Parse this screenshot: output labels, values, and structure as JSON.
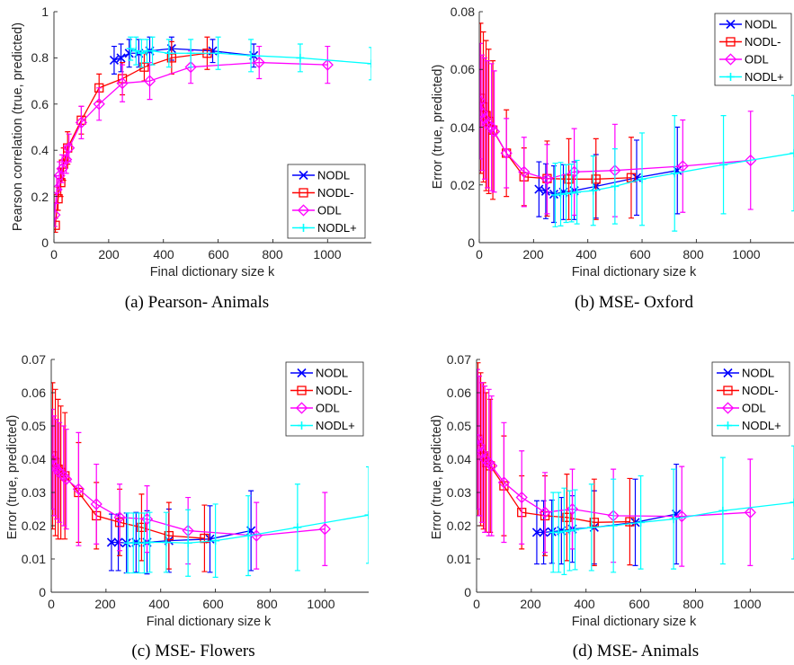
{
  "chart_data": [
    {
      "type": "line",
      "caption": "(a) Pearson- Animals",
      "xlabel": "Final dictionary size k",
      "ylabel": "Pearson correlation (true, predicted)",
      "xlim": [
        0,
        1160
      ],
      "ylim": [
        0,
        1
      ],
      "xticks": [
        0,
        200,
        400,
        600,
        800,
        1000
      ],
      "xtick_labels": [
        "0",
        "200",
        "400",
        "600",
        "800",
        "1000"
      ],
      "yticks": [
        0,
        0.2,
        0.4,
        0.6,
        0.8,
        1
      ],
      "ytick_labels": [
        "0",
        "0.2",
        "0.4",
        "0.6",
        "0.8",
        "1"
      ],
      "legend_position": "bottom-right",
      "series": [
        {
          "name": "NODL",
          "color": "#0000ff",
          "marker": "x",
          "x": [
            220,
            245,
            275,
            310,
            350,
            430,
            580,
            730
          ],
          "y": [
            0.79,
            0.8,
            0.82,
            0.82,
            0.83,
            0.84,
            0.83,
            0.81
          ],
          "err": [
            0.06,
            0.06,
            0.06,
            0.06,
            0.06,
            0.05,
            0.05,
            0.05
          ]
        },
        {
          "name": "NODL-",
          "color": "#ff0000",
          "marker": "square",
          "x": [
            5,
            15,
            25,
            35,
            50,
            100,
            165,
            250,
            330,
            430,
            560
          ],
          "y": [
            0.075,
            0.19,
            0.26,
            0.34,
            0.41,
            0.53,
            0.67,
            0.71,
            0.76,
            0.8,
            0.82
          ],
          "err": [
            0.03,
            0.05,
            0.06,
            0.07,
            0.07,
            0.06,
            0.06,
            0.07,
            0.06,
            0.07,
            0.07
          ]
        },
        {
          "name": "ODL",
          "color": "#ff00ff",
          "marker": "diamond",
          "x": [
            3,
            10,
            20,
            30,
            45,
            55,
            100,
            165,
            250,
            350,
            500,
            750,
            1000
          ],
          "y": [
            0.12,
            0.23,
            0.29,
            0.32,
            0.36,
            0.41,
            0.52,
            0.6,
            0.69,
            0.7,
            0.76,
            0.78,
            0.77
          ],
          "err": [
            0.05,
            0.06,
            0.06,
            0.06,
            0.06,
            0.06,
            0.07,
            0.07,
            0.08,
            0.08,
            0.07,
            0.07,
            0.08
          ]
        },
        {
          "name": "NODL+",
          "color": "#00ffff",
          "marker": "plus",
          "x": [
            280,
            300,
            320,
            340,
            360,
            420,
            500,
            600,
            720,
            900,
            1160
          ],
          "y": [
            0.84,
            0.83,
            0.82,
            0.83,
            0.83,
            0.82,
            0.82,
            0.82,
            0.81,
            0.8,
            0.775
          ],
          "err": [
            0.05,
            0.06,
            0.06,
            0.05,
            0.06,
            0.06,
            0.06,
            0.07,
            0.07,
            0.06,
            0.07
          ]
        }
      ]
    },
    {
      "type": "line",
      "caption": "(b) MSE- Oxford",
      "xlabel": "Final dictionary size k",
      "ylabel": "Error (true, predicted)",
      "xlim": [
        0,
        1160
      ],
      "ylim": [
        0,
        0.08
      ],
      "xticks": [
        0,
        200,
        400,
        600,
        800,
        1000
      ],
      "xtick_labels": [
        "0",
        "200",
        "400",
        "600",
        "800",
        "1000"
      ],
      "yticks": [
        0,
        0.02,
        0.04,
        0.06,
        0.08
      ],
      "ytick_labels": [
        "0",
        "0.02",
        "0.04",
        "0.06",
        "0.08"
      ],
      "legend_position": "top-right",
      "series": [
        {
          "name": "NODL",
          "color": "#0000ff",
          "marker": "x",
          "x": [
            220,
            245,
            275,
            310,
            350,
            430,
            580,
            730
          ],
          "y": [
            0.0185,
            0.0178,
            0.0168,
            0.0175,
            0.018,
            0.0195,
            0.0225,
            0.025
          ],
          "err": [
            0.0095,
            0.0095,
            0.0098,
            0.0095,
            0.01,
            0.011,
            0.013,
            0.015
          ]
        },
        {
          "name": "NODL-",
          "color": "#ff0000",
          "marker": "square",
          "x": [
            5,
            15,
            25,
            35,
            50,
            100,
            165,
            250,
            330,
            430,
            560
          ],
          "y": [
            0.05,
            0.047,
            0.044,
            0.042,
            0.039,
            0.031,
            0.0228,
            0.0222,
            0.022,
            0.022,
            0.0225
          ],
          "err": [
            0.026,
            0.026,
            0.026,
            0.025,
            0.024,
            0.015,
            0.01,
            0.013,
            0.014,
            0.014,
            0.014
          ]
        },
        {
          "name": "ODL",
          "color": "#ff00ff",
          "marker": "diamond",
          "x": [
            3,
            10,
            20,
            30,
            45,
            55,
            100,
            165,
            250,
            350,
            500,
            750,
            1000
          ],
          "y": [
            0.049,
            0.045,
            0.043,
            0.041,
            0.04,
            0.0385,
            0.031,
            0.0245,
            0.022,
            0.0245,
            0.025,
            0.0265,
            0.0285
          ],
          "err": [
            0.02,
            0.02,
            0.021,
            0.022,
            0.022,
            0.021,
            0.012,
            0.012,
            0.012,
            0.015,
            0.016,
            0.016,
            0.017
          ]
        },
        {
          "name": "NODL+",
          "color": "#00ffff",
          "marker": "plus",
          "x": [
            280,
            300,
            320,
            340,
            360,
            420,
            500,
            600,
            720,
            900,
            1160
          ],
          "y": [
            0.0165,
            0.0168,
            0.017,
            0.0172,
            0.0175,
            0.018,
            0.0195,
            0.022,
            0.024,
            0.027,
            0.031
          ],
          "err": [
            0.011,
            0.011,
            0.01,
            0.01,
            0.011,
            0.012,
            0.013,
            0.016,
            0.02,
            0.017,
            0.02
          ]
        }
      ]
    },
    {
      "type": "line",
      "caption": "(c) MSE- Flowers",
      "xlabel": "Final dictionary size k",
      "ylabel": "Error (true, predicted)",
      "xlim": [
        0,
        1160
      ],
      "ylim": [
        0,
        0.07
      ],
      "xticks": [
        0,
        200,
        400,
        600,
        800,
        1000
      ],
      "xtick_labels": [
        "0",
        "200",
        "400",
        "600",
        "800",
        "1000"
      ],
      "yticks": [
        0,
        0.01,
        0.02,
        0.03,
        0.04,
        0.05,
        0.06,
        0.07
      ],
      "ytick_labels": [
        "0",
        "0.01",
        "0.02",
        "0.03",
        "0.04",
        "0.05",
        "0.06",
        "0.07"
      ],
      "legend_position": "top-right",
      "series": [
        {
          "name": "NODL",
          "color": "#0000ff",
          "marker": "x",
          "x": [
            220,
            245,
            275,
            310,
            350,
            430,
            580,
            730
          ],
          "y": [
            0.015,
            0.015,
            0.0148,
            0.015,
            0.015,
            0.0155,
            0.016,
            0.0185
          ],
          "err": [
            0.0085,
            0.0085,
            0.009,
            0.009,
            0.0095,
            0.0095,
            0.01,
            0.012
          ]
        },
        {
          "name": "NODL-",
          "color": "#ff0000",
          "marker": "square",
          "x": [
            5,
            15,
            25,
            35,
            50,
            100,
            165,
            250,
            330,
            430,
            560
          ],
          "y": [
            0.041,
            0.039,
            0.037,
            0.036,
            0.035,
            0.03,
            0.023,
            0.021,
            0.0195,
            0.017,
            0.0162
          ],
          "err": [
            0.022,
            0.022,
            0.021,
            0.02,
            0.019,
            0.015,
            0.01,
            0.01,
            0.01,
            0.01,
            0.01
          ]
        },
        {
          "name": "ODL",
          "color": "#ff00ff",
          "marker": "diamond",
          "x": [
            3,
            10,
            20,
            30,
            45,
            55,
            100,
            165,
            250,
            350,
            500,
            750,
            1000
          ],
          "y": [
            0.04,
            0.038,
            0.037,
            0.036,
            0.035,
            0.034,
            0.031,
            0.0265,
            0.0225,
            0.022,
            0.0185,
            0.017,
            0.019
          ],
          "err": [
            0.015,
            0.015,
            0.015,
            0.015,
            0.015,
            0.015,
            0.017,
            0.012,
            0.01,
            0.01,
            0.01,
            0.01,
            0.011
          ]
        },
        {
          "name": "NODL+",
          "color": "#00ffff",
          "marker": "plus",
          "x": [
            280,
            300,
            320,
            340,
            360,
            420,
            500,
            600,
            720,
            900,
            1160
          ],
          "y": [
            0.0148,
            0.0148,
            0.0148,
            0.0148,
            0.015,
            0.015,
            0.0148,
            0.0155,
            0.017,
            0.0195,
            0.0232
          ],
          "err": [
            0.009,
            0.009,
            0.009,
            0.009,
            0.009,
            0.009,
            0.01,
            0.011,
            0.012,
            0.013,
            0.0145
          ]
        }
      ]
    },
    {
      "type": "line",
      "caption": "(d) MSE- Animals",
      "xlabel": "Final dictionary size k",
      "ylabel": "Error (true, predicted)",
      "xlim": [
        0,
        1160
      ],
      "ylim": [
        0,
        0.07
      ],
      "xticks": [
        0,
        200,
        400,
        600,
        800,
        1000
      ],
      "xtick_labels": [
        "0",
        "200",
        "400",
        "600",
        "800",
        "1000"
      ],
      "yticks": [
        0,
        0.01,
        0.02,
        0.03,
        0.04,
        0.05,
        0.06,
        0.07
      ],
      "ytick_labels": [
        "0",
        "0.01",
        "0.02",
        "0.03",
        "0.04",
        "0.05",
        "0.06",
        "0.07"
      ],
      "legend_position": "top-right",
      "series": [
        {
          "name": "NODL",
          "color": "#0000ff",
          "marker": "x",
          "x": [
            220,
            245,
            275,
            310,
            350,
            430,
            580,
            730
          ],
          "y": [
            0.018,
            0.018,
            0.0182,
            0.0185,
            0.019,
            0.0195,
            0.021,
            0.0235
          ],
          "err": [
            0.0095,
            0.0095,
            0.0095,
            0.01,
            0.01,
            0.011,
            0.013,
            0.015
          ]
        },
        {
          "name": "NODL-",
          "color": "#ff0000",
          "marker": "square",
          "x": [
            5,
            15,
            25,
            35,
            50,
            100,
            165,
            250,
            330,
            430,
            560
          ],
          "y": [
            0.046,
            0.043,
            0.041,
            0.039,
            0.038,
            0.032,
            0.024,
            0.023,
            0.0225,
            0.021,
            0.0212
          ],
          "err": [
            0.023,
            0.023,
            0.022,
            0.021,
            0.02,
            0.015,
            0.011,
            0.012,
            0.013,
            0.013,
            0.013
          ]
        },
        {
          "name": "ODL",
          "color": "#ff00ff",
          "marker": "diamond",
          "x": [
            3,
            10,
            20,
            30,
            45,
            55,
            100,
            165,
            250,
            350,
            500,
            750,
            1000
          ],
          "y": [
            0.046,
            0.044,
            0.042,
            0.04,
            0.039,
            0.038,
            0.033,
            0.0285,
            0.024,
            0.025,
            0.023,
            0.0228,
            0.024
          ],
          "err": [
            0.021,
            0.021,
            0.021,
            0.022,
            0.022,
            0.021,
            0.018,
            0.014,
            0.012,
            0.012,
            0.014,
            0.015,
            0.016
          ]
        },
        {
          "name": "NODL+",
          "color": "#00ffff",
          "marker": "plus",
          "x": [
            280,
            300,
            320,
            340,
            360,
            420,
            500,
            600,
            720,
            900,
            1160
          ],
          "y": [
            0.018,
            0.018,
            0.0183,
            0.0185,
            0.0188,
            0.0195,
            0.02,
            0.021,
            0.022,
            0.0245,
            0.027
          ],
          "err": [
            0.012,
            0.012,
            0.013,
            0.012,
            0.012,
            0.013,
            0.014,
            0.014,
            0.015,
            0.016,
            0.017
          ]
        }
      ]
    }
  ]
}
